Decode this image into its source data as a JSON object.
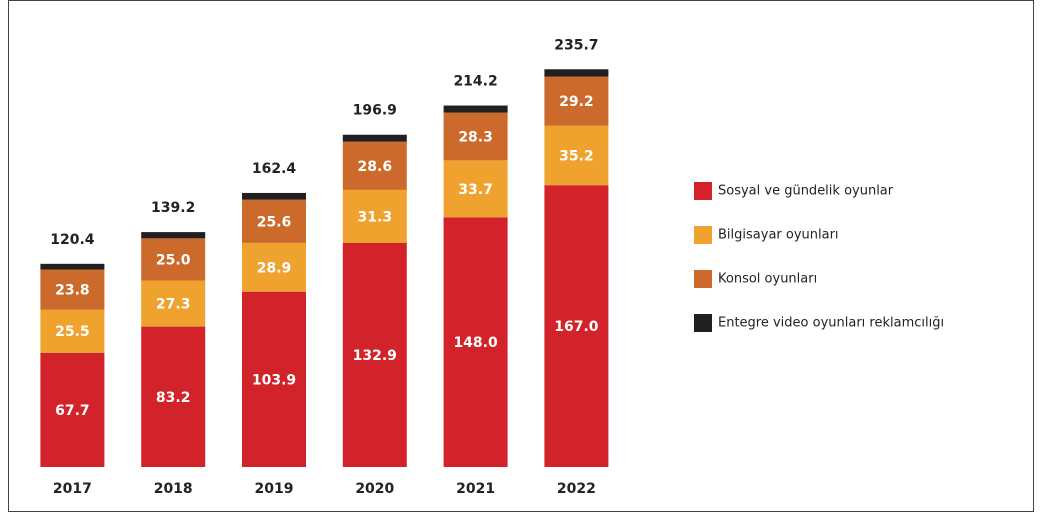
{
  "chart_data": {
    "type": "stacked_bar",
    "categories": [
      "2017",
      "2018",
      "2019",
      "2020",
      "2021",
      "2022"
    ],
    "series": [
      {
        "name": "Sosyal ve gündelik oyunlar",
        "color": "#d2232a",
        "values": [
          67.7,
          83.2,
          103.9,
          132.9,
          148.0,
          167.0
        ],
        "value_labels": [
          "67.7",
          "83.2",
          "103.9",
          "132.9",
          "148.0",
          "167.0"
        ]
      },
      {
        "name": "Bilgisayar oyunları",
        "color": "#f0a22e",
        "values": [
          25.5,
          27.3,
          28.9,
          31.3,
          33.7,
          35.2
        ],
        "value_labels": [
          "25.5",
          "27.3",
          "28.9",
          "31.3",
          "33.7",
          "35.2"
        ]
      },
      {
        "name": "Konsol oyunları",
        "color": "#cc6a2c",
        "values": [
          23.8,
          25.0,
          25.6,
          28.6,
          28.3,
          29.2
        ],
        "value_labels": [
          "23.8",
          "25.0",
          "25.6",
          "28.6",
          "28.3",
          "29.2"
        ]
      },
      {
        "name": "Entegre video oyunları reklamcılığı",
        "color": "#231f20",
        "values": [
          3.4,
          3.7,
          4.0,
          4.1,
          4.2,
          4.3
        ]
      }
    ],
    "totals": [
      120.4,
      139.2,
      162.4,
      196.9,
      214.2,
      235.7
    ],
    "ylim": [
      0,
      240
    ],
    "legend": "right"
  }
}
